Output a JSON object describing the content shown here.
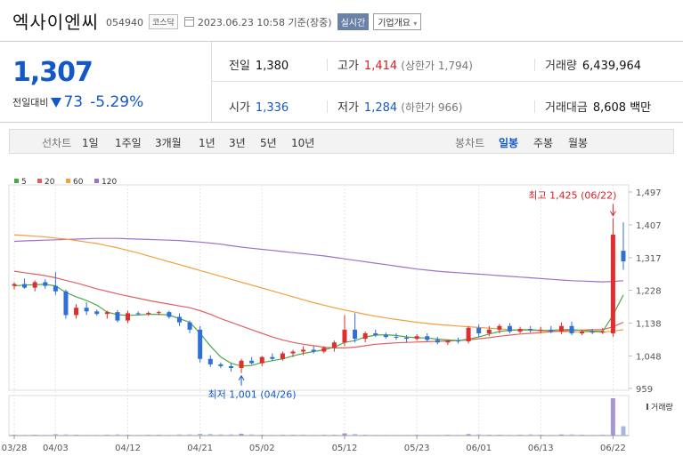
{
  "header": {
    "name": "엑사이엔씨",
    "code": "054940",
    "market": "코스닥",
    "datetime": "2023.06.23 10:58  기준(장중)",
    "realtime_btn": "실시간",
    "company_btn": "기업개요"
  },
  "quote": {
    "price": "1,307",
    "change_label": "전일대비",
    "change_value": "73",
    "change_pct": "-5.29%",
    "prev_label": "전일",
    "prev_value": "1,380",
    "high_label": "고가",
    "high_value": "1,414",
    "upper_limit": "(상한가 1,794)",
    "volume_label": "거래량",
    "volume_value": "6,439,964",
    "open_label": "시가",
    "open_value": "1,336",
    "low_label": "저가",
    "low_value": "1,284",
    "lower_limit": "(하한가 966)",
    "amount_label": "거래대금",
    "amount_value": "8,608 백만"
  },
  "toolbar": {
    "line_chart_label": "선차트",
    "periods": [
      "1일",
      "1주일",
      "3개월",
      "1년",
      "3년",
      "5년",
      "10년"
    ],
    "candle_label": "봉차트",
    "candle_types": [
      "일봉",
      "주봉",
      "월봉"
    ],
    "active_candle": "일봉"
  },
  "chart_data": {
    "type": "candlestick",
    "legend": [
      {
        "name": "5",
        "color": "#49a949"
      },
      {
        "name": "20",
        "color": "#e06060"
      },
      {
        "name": "60",
        "color": "#f0a040"
      },
      {
        "name": "120",
        "color": "#a070c8"
      }
    ],
    "y_ticks": [
      "1,497",
      "1,407",
      "1,317",
      "1,228",
      "1,138",
      "1,048",
      "959"
    ],
    "ylim": [
      959,
      1497
    ],
    "x_labels": [
      {
        "label": "03/28",
        "i": 0
      },
      {
        "label": "04/03",
        "i": 4
      },
      {
        "label": "04/12",
        "i": 11
      },
      {
        "label": "04/21",
        "i": 18
      },
      {
        "label": "05/02",
        "i": 24
      },
      {
        "label": "05/12",
        "i": 32
      },
      {
        "label": "05/23",
        "i": 39
      },
      {
        "label": "06/01",
        "i": 45
      },
      {
        "label": "06/13",
        "i": 51
      },
      {
        "label": "06/22",
        "i": 58
      }
    ],
    "max_note": "최고 1,425 (06/22)",
    "min_note": "최저 1,001 (04/26)",
    "volume_label": "거래량",
    "candles": [
      [
        1240,
        1250,
        1230,
        1245
      ],
      [
        1245,
        1260,
        1232,
        1235
      ],
      [
        1235,
        1255,
        1225,
        1250
      ],
      [
        1250,
        1258,
        1232,
        1240
      ],
      [
        1240,
        1278,
        1215,
        1225
      ],
      [
        1225,
        1230,
        1150,
        1160
      ],
      [
        1160,
        1190,
        1150,
        1180
      ],
      [
        1180,
        1195,
        1160,
        1170
      ],
      [
        1170,
        1175,
        1158,
        1163
      ],
      [
        1163,
        1172,
        1150,
        1168
      ],
      [
        1168,
        1174,
        1140,
        1145
      ],
      [
        1145,
        1172,
        1138,
        1165
      ],
      [
        1165,
        1170,
        1160,
        1164
      ],
      [
        1164,
        1170,
        1158,
        1166
      ],
      [
        1166,
        1172,
        1160,
        1168
      ],
      [
        1168,
        1172,
        1150,
        1155
      ],
      [
        1155,
        1165,
        1130,
        1140
      ],
      [
        1140,
        1145,
        1110,
        1120
      ],
      [
        1120,
        1130,
        1030,
        1040
      ],
      [
        1040,
        1050,
        1018,
        1025
      ],
      [
        1025,
        1030,
        1015,
        1020
      ],
      [
        1020,
        1028,
        1005,
        1015
      ],
      [
        1015,
        1040,
        1001,
        1035
      ],
      [
        1035,
        1045,
        1025,
        1028
      ],
      [
        1028,
        1048,
        1020,
        1045
      ],
      [
        1045,
        1055,
        1035,
        1040
      ],
      [
        1040,
        1060,
        1035,
        1055
      ],
      [
        1055,
        1065,
        1045,
        1060
      ],
      [
        1060,
        1075,
        1050,
        1065
      ],
      [
        1065,
        1075,
        1055,
        1060
      ],
      [
        1060,
        1075,
        1055,
        1070
      ],
      [
        1070,
        1090,
        1060,
        1085
      ],
      [
        1085,
        1160,
        1075,
        1120
      ],
      [
        1120,
        1165,
        1085,
        1095
      ],
      [
        1095,
        1115,
        1085,
        1110
      ],
      [
        1110,
        1120,
        1100,
        1105
      ],
      [
        1105,
        1112,
        1095,
        1100
      ],
      [
        1100,
        1110,
        1092,
        1098
      ],
      [
        1098,
        1105,
        1085,
        1095
      ],
      [
        1095,
        1108,
        1090,
        1102
      ],
      [
        1102,
        1110,
        1088,
        1092
      ],
      [
        1092,
        1100,
        1080,
        1085
      ],
      [
        1085,
        1092,
        1078,
        1090
      ],
      [
        1090,
        1098,
        1082,
        1088
      ],
      [
        1088,
        1130,
        1082,
        1125
      ],
      [
        1125,
        1135,
        1100,
        1110
      ],
      [
        1110,
        1130,
        1102,
        1120
      ],
      [
        1120,
        1135,
        1110,
        1130
      ],
      [
        1130,
        1138,
        1110,
        1115
      ],
      [
        1115,
        1128,
        1110,
        1122
      ],
      [
        1122,
        1130,
        1112,
        1118
      ],
      [
        1118,
        1128,
        1110,
        1120
      ],
      [
        1120,
        1130,
        1110,
        1115
      ],
      [
        1115,
        1140,
        1108,
        1130
      ],
      [
        1130,
        1142,
        1105,
        1110
      ],
      [
        1110,
        1120,
        1105,
        1115
      ],
      [
        1115,
        1122,
        1108,
        1112
      ],
      [
        1112,
        1125,
        1108,
        1115
      ],
      [
        1110,
        1425,
        1100,
        1380
      ],
      [
        1336,
        1414,
        1284,
        1307
      ]
    ],
    "ma5": [
      1240,
      1242,
      1243,
      1244,
      1240,
      1222,
      1210,
      1200,
      1187,
      1168,
      1161,
      1159,
      1160,
      1162,
      1162,
      1160,
      1150,
      1140,
      1110,
      1075,
      1045,
      1028,
      1020,
      1022,
      1030,
      1035,
      1040,
      1048,
      1055,
      1060,
      1065,
      1072,
      1085,
      1090,
      1100,
      1105,
      1106,
      1104,
      1100,
      1098,
      1097,
      1094,
      1092,
      1090,
      1094,
      1100,
      1108,
      1115,
      1118,
      1120,
      1120,
      1118,
      1118,
      1120,
      1120,
      1118,
      1116,
      1115,
      1160,
      1215
    ],
    "ma20": [
      1280,
      1276,
      1272,
      1268,
      1262,
      1255,
      1248,
      1240,
      1232,
      1225,
      1218,
      1212,
      1206,
      1200,
      1195,
      1190,
      1185,
      1180,
      1172,
      1162,
      1150,
      1140,
      1130,
      1120,
      1110,
      1100,
      1092,
      1085,
      1080,
      1076,
      1072,
      1070,
      1070,
      1072,
      1076,
      1080,
      1082,
      1084,
      1085,
      1086,
      1087,
      1088,
      1089,
      1090,
      1092,
      1095,
      1098,
      1102,
      1105,
      1108,
      1110,
      1112,
      1114,
      1116,
      1118,
      1119,
      1120,
      1120,
      1128,
      1140
    ],
    "ma60": [
      1380,
      1378,
      1376,
      1374,
      1371,
      1368,
      1364,
      1360,
      1356,
      1350,
      1344,
      1337,
      1330,
      1322,
      1314,
      1306,
      1298,
      1290,
      1282,
      1274,
      1266,
      1258,
      1250,
      1242,
      1234,
      1226,
      1218,
      1210,
      1202,
      1194,
      1187,
      1180,
      1174,
      1168,
      1162,
      1157,
      1152,
      1148,
      1144,
      1140,
      1137,
      1134,
      1132,
      1130,
      1128,
      1126,
      1124,
      1122,
      1120,
      1119,
      1118,
      1117,
      1116,
      1115,
      1114,
      1114,
      1114,
      1113,
      1116,
      1120
    ],
    "ma120": [
      1362,
      1363,
      1364,
      1365,
      1366,
      1367,
      1368,
      1369,
      1370,
      1370,
      1370,
      1369,
      1368,
      1367,
      1366,
      1365,
      1364,
      1362,
      1360,
      1357,
      1354,
      1350,
      1346,
      1343,
      1340,
      1337,
      1334,
      1331,
      1328,
      1325,
      1322,
      1318,
      1314,
      1310,
      1306,
      1302,
      1298,
      1294,
      1290,
      1286,
      1283,
      1280,
      1278,
      1276,
      1274,
      1272,
      1270,
      1268,
      1266,
      1264,
      1262,
      1260,
      1258,
      1256,
      1254,
      1253,
      1252,
      1251,
      1252,
      1254
    ],
    "volume": [
      2,
      2,
      2,
      2,
      4,
      3,
      2,
      2,
      2,
      2,
      3,
      2,
      2,
      2,
      2,
      2,
      3,
      3,
      5,
      4,
      3,
      3,
      5,
      3,
      2,
      2,
      2,
      2,
      2,
      2,
      2,
      2,
      6,
      4,
      2,
      2,
      2,
      2,
      2,
      2,
      2,
      2,
      2,
      2,
      4,
      3,
      2,
      2,
      2,
      2,
      3,
      2,
      2,
      3,
      3,
      2,
      2,
      2,
      100,
      25
    ]
  }
}
